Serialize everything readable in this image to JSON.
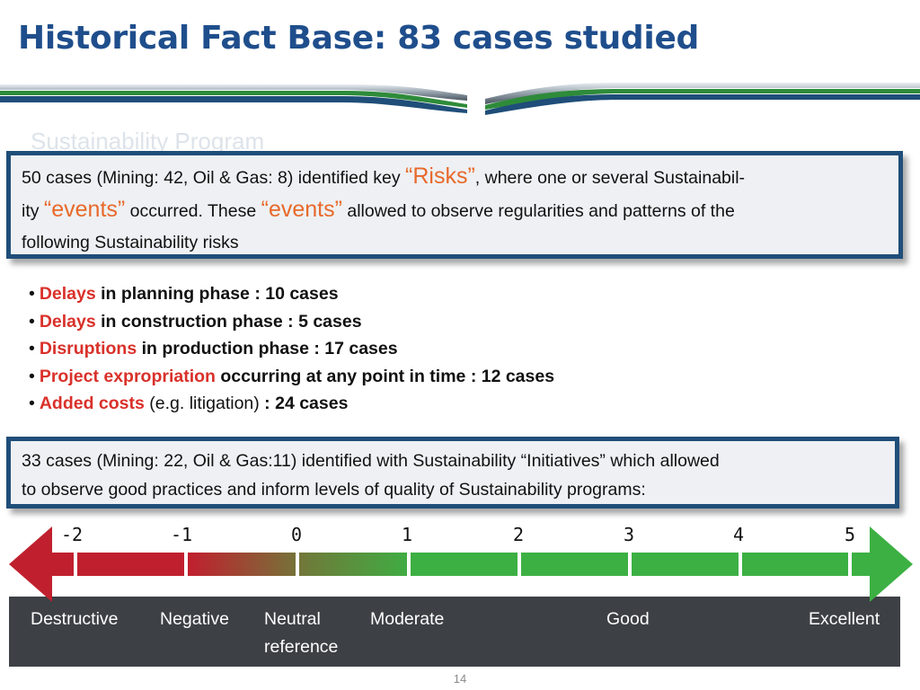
{
  "title": "Historical Fact Base: 83 cases studied",
  "ghost_text": "Sustainability Program",
  "box1": {
    "t1": "50 cases (Mining: 42, Oil & Gas: 8) identified key ",
    "h1": "“Risks”",
    "t2": ", where one or several Sustainabil-",
    "t3": "ity ",
    "h2": "“events”",
    "t4": " occurred. These ",
    "h3": "“events”",
    "t5": "  allowed to observe regularities and patterns of the",
    "t6": "following Sustainability risks"
  },
  "bullets": [
    {
      "red": "Delays",
      "rest": " in planning phase : 10 cases"
    },
    {
      "red": "Delays",
      "rest": " in construction phase : 5 cases"
    },
    {
      "red": "Disruptions",
      "rest": " in production phase : 17 cases"
    },
    {
      "red": "Project expropriation",
      "rest": " occurring at any point in time : 12 cases"
    },
    {
      "red": "Added costs",
      "mid": " (e.g. litigation)",
      "rest": " : 24 cases"
    }
  ],
  "box2": {
    "line1": "33 cases (Mining: 22, Oil & Gas:11) identified with Sustainability “Initiatives” which allowed",
    "line2": "to observe good practices and inform levels of quality of Sustainability programs:"
  },
  "scale": {
    "numbers": [
      "-2",
      "-1",
      "0",
      "1",
      "2",
      "3",
      "4",
      "5"
    ],
    "labels": {
      "destructive": "Destructive",
      "negative": "Negative",
      "neutral_1": "Neutral",
      "neutral_2": "reference",
      "moderate": "Moderate",
      "good": "Good",
      "excellent": "Excellent"
    },
    "colors": {
      "negative": "#c0202e",
      "positive": "#3cb043",
      "neutral": "#6e7b3a",
      "label_band": "#3d4044"
    }
  },
  "page_number": "14"
}
